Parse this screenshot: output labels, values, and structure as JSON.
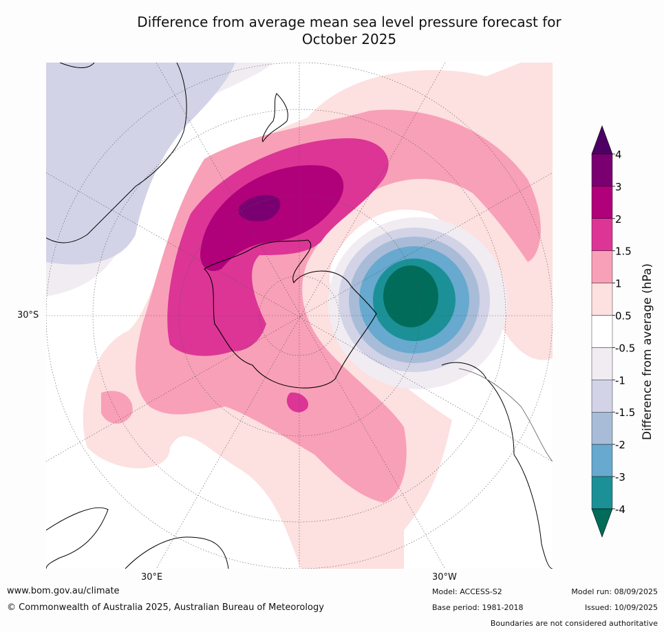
{
  "title_line1": "Difference from average mean sea level pressure forecast for",
  "title_line2": "October 2025",
  "map": {
    "lat_label": "30°S",
    "lon_label_left": "30°E",
    "lon_label_right": "30°W"
  },
  "colorbar": {
    "label": "Difference from average (hPa)",
    "ticks": [
      "4",
      "3",
      "2",
      "1.5",
      "1",
      "0.5",
      "-0.5",
      "-1",
      "-1.5",
      "-2",
      "-3",
      "-4"
    ],
    "colors": [
      "#4d0063",
      "#7a0072",
      "#b0007a",
      "#dc3596",
      "#f8a0b8",
      "#fde0e0",
      "#ffffff",
      "#f1ecf2",
      "#d2d3e6",
      "#a8bcd8",
      "#67a9cf",
      "#1c9097",
      "#016c59"
    ]
  },
  "footer": {
    "url": "www.bom.gov.au/climate",
    "copyright": "© Commonwealth of Australia 2025, Australian Bureau of Meteorology",
    "model": "Model: ACCESS-S2",
    "base_period": "Base period: 1981-2018",
    "model_run": "Model run: 08/09/2025",
    "issued": "Issued: 10/09/2025",
    "disclaimer": "Boundaries are not considered authoritative"
  }
}
